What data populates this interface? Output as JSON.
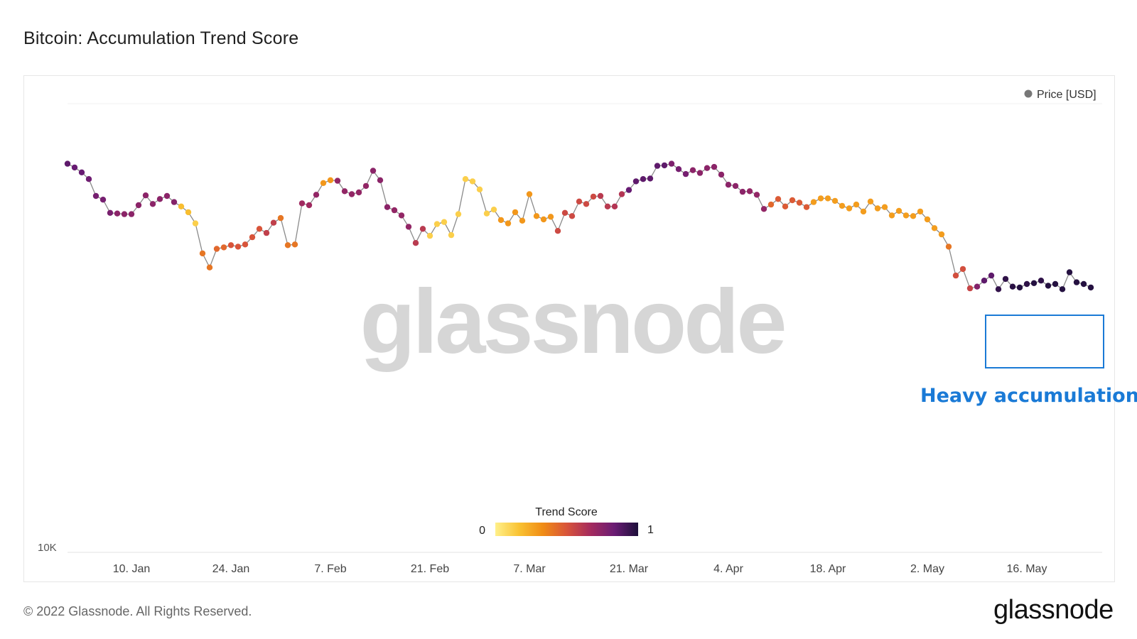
{
  "title": "Bitcoin: Accumulation Trend Score",
  "legend": {
    "series_label": "Price [USD]",
    "series_color": "#777777"
  },
  "watermark": "glassnode",
  "colorbar": {
    "title": "Trend Score",
    "min_label": "0",
    "max_label": "1",
    "stops": [
      "#fff08a",
      "#f9c232",
      "#f08c15",
      "#d8543a",
      "#a52b5e",
      "#6a1c74",
      "#1c0f3a"
    ]
  },
  "annotation": {
    "label": "Heavy accumulation",
    "color": "#1a7ad6"
  },
  "footer": {
    "copyright": "© 2022 Glassnode. All Rights Reserved.",
    "brand": "glassnode"
  },
  "chart_data": {
    "type": "line",
    "title": "Bitcoin: Accumulation Trend Score",
    "xlabel": "",
    "ylabel": "",
    "y_scale": "log",
    "y_tick_labels": [
      "10K"
    ],
    "x_tick_labels": [
      "10. Jan",
      "24. Jan",
      "7. Feb",
      "21. Feb",
      "7. Mar",
      "21. Mar",
      "4. Apr",
      "18. Apr",
      "2. May",
      "16. May"
    ],
    "x_start": "1. Jan",
    "x_end": "26. May",
    "series": [
      {
        "name": "Price [USD]",
        "values": [
          47200,
          46500,
          45600,
          44400,
          41500,
          40900,
          38800,
          38700,
          38600,
          38600,
          40000,
          41600,
          40200,
          41000,
          41500,
          40500,
          39800,
          38900,
          37200,
          33000,
          31200,
          33600,
          33800,
          34100,
          33900,
          34200,
          35200,
          36400,
          35800,
          37300,
          38000,
          34100,
          34200,
          40300,
          40000,
          41700,
          43700,
          44200,
          44100,
          42300,
          41800,
          42100,
          43200,
          45900,
          44200,
          39700,
          39200,
          38400,
          36700,
          34400,
          36400,
          35400,
          37100,
          37400,
          35500,
          38600,
          44400,
          44000,
          42600,
          38700,
          39300,
          37700,
          37200,
          38900,
          37600,
          41800,
          38300,
          37800,
          38200,
          36100,
          38800,
          38300,
          40600,
          40200,
          41400,
          41500,
          39800,
          39800,
          41800,
          42500,
          44000,
          44400,
          44500,
          46800,
          46900,
          47200,
          46200,
          45300,
          46000,
          45500,
          46400,
          46600,
          45200,
          43400,
          43200,
          42200,
          42300,
          41700,
          39400,
          40100,
          41000,
          39800,
          40800,
          40400,
          39700,
          40500,
          41100,
          41100,
          40700,
          39900,
          39500,
          40100,
          39000,
          40600,
          39500,
          39700,
          38400,
          39100,
          38400,
          38300,
          39000,
          37800,
          36500,
          35600,
          33900,
          30200,
          31000,
          28700,
          28900,
          29600,
          30200,
          28600,
          29800,
          28900,
          28800,
          29200,
          29300,
          29600,
          29000,
          29200,
          28600,
          30600,
          29400,
          29200,
          28800
        ]
      }
    ],
    "trend_score": [
      0.86,
      0.84,
      0.84,
      0.82,
      0.8,
      0.8,
      0.79,
      0.74,
      0.74,
      0.74,
      0.74,
      0.74,
      0.74,
      0.74,
      0.74,
      0.76,
      0.18,
      0.18,
      0.12,
      0.4,
      0.4,
      0.44,
      0.44,
      0.5,
      0.5,
      0.5,
      0.5,
      0.5,
      0.58,
      0.58,
      0.4,
      0.4,
      0.4,
      0.68,
      0.68,
      0.72,
      0.3,
      0.3,
      0.72,
      0.72,
      0.72,
      0.72,
      0.72,
      0.74,
      0.74,
      0.74,
      0.72,
      0.72,
      0.72,
      0.6,
      0.6,
      0.12,
      0.12,
      0.12,
      0.12,
      0.12,
      0.12,
      0.12,
      0.12,
      0.12,
      0.12,
      0.3,
      0.3,
      0.3,
      0.3,
      0.3,
      0.3,
      0.3,
      0.3,
      0.54,
      0.54,
      0.54,
      0.54,
      0.54,
      0.54,
      0.6,
      0.6,
      0.62,
      0.62,
      0.84,
      0.86,
      0.86,
      0.86,
      0.86,
      0.86,
      0.78,
      0.8,
      0.8,
      0.74,
      0.74,
      0.74,
      0.74,
      0.74,
      0.74,
      0.74,
      0.74,
      0.72,
      0.72,
      0.72,
      0.44,
      0.48,
      0.48,
      0.48,
      0.48,
      0.48,
      0.28,
      0.28,
      0.28,
      0.28,
      0.28,
      0.28,
      0.28,
      0.28,
      0.28,
      0.28,
      0.28,
      0.28,
      0.28,
      0.28,
      0.28,
      0.28,
      0.28,
      0.28,
      0.28,
      0.4,
      0.52,
      0.52,
      0.56,
      0.76,
      0.86,
      0.86,
      0.95,
      0.96,
      0.97,
      0.98,
      0.96,
      0.98,
      0.96,
      0.98,
      0.98,
      0.98,
      0.98,
      0.98,
      0.98,
      0.98
    ]
  }
}
